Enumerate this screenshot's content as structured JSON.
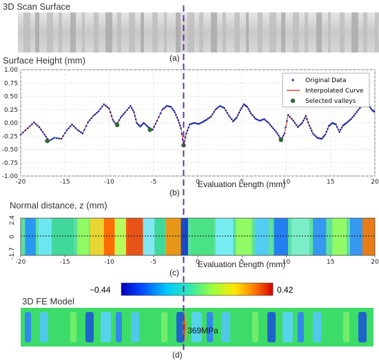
{
  "titles": {
    "scan": "3D Scan Surface",
    "surface_height": "Surface Height (mm)",
    "normal_distance": "Normal distance, z (mm)",
    "fe_model": "3D FE Model"
  },
  "panel_labels": [
    "(a)",
    "(b)",
    "(c)",
    "(d)"
  ],
  "annotation": "369MPa",
  "colors": {
    "curve": "#e04a3a",
    "points": "#1a2a9c",
    "valleys": "#2e6b2e",
    "cursor": "#6a2fa0",
    "grid": "#d9d9d9"
  },
  "chart_data": [
    {
      "type": "line",
      "xlabel": "Evaluation Length (mm)",
      "ylabel": "Surface Height (mm)",
      "xlim": [
        -20,
        20
      ],
      "ylim": [
        -1.0,
        1.0
      ],
      "xticks": [
        "-20",
        "-15",
        "-10",
        "-5",
        "0",
        "5",
        "10",
        "15",
        "20"
      ],
      "yticks": [
        "-1.00",
        "-0.75",
        "-0.50",
        "-0.25",
        "0.00",
        "0.25",
        "0.50",
        "0.75",
        "1.00"
      ],
      "grid": true,
      "legend_position": "top-right",
      "legend": [
        "Original Data",
        "Interpolated Curve",
        "Selected valleys"
      ],
      "cursor_x": -1.6,
      "series": [
        {
          "name": "Interpolated Curve",
          "x": [
            -20,
            -19.2,
            -18.5,
            -17.9,
            -17.3,
            -16.8,
            -16.2,
            -15.4,
            -14.8,
            -14.2,
            -13.6,
            -13,
            -12.4,
            -11.8,
            -11.2,
            -10.6,
            -10,
            -9.6,
            -9.2,
            -8.7,
            -8.2,
            -7.6,
            -7.2,
            -6.9,
            -6.5,
            -6.1,
            -5.6,
            -5.1,
            -4.6,
            -4,
            -3.5,
            -3,
            -2.6,
            -2.2,
            -1.9,
            -1.6,
            -1.3,
            -0.9,
            -0.4,
            0.1,
            0.6,
            1,
            1.5,
            2,
            2.5,
            3,
            3.5,
            4,
            4.4,
            4.8,
            5.2,
            5.6,
            6,
            6.5,
            7,
            7.5,
            8,
            8.5,
            9,
            9.4,
            9.8,
            10.2,
            10.8,
            11.3,
            11.8,
            12.2,
            12.6,
            13,
            13.5,
            14,
            14.4,
            14.8,
            15.2,
            15.6,
            16,
            16.4,
            16.8,
            17.3,
            17.8,
            18.3,
            18.8,
            19.3,
            19.7,
            20
          ],
          "y": [
            -0.22,
            -0.1,
            0.01,
            -0.08,
            -0.22,
            -0.34,
            -0.28,
            -0.3,
            -0.14,
            -0.03,
            -0.13,
            -0.2,
            0.01,
            0.13,
            0.22,
            0.35,
            0.27,
            0.06,
            -0.04,
            0.1,
            0.2,
            0.32,
            0.2,
            0.0,
            -0.07,
            0.0,
            -0.08,
            -0.13,
            0.04,
            0.25,
            0.32,
            0.3,
            0.2,
            0.05,
            -0.1,
            -0.42,
            -0.2,
            -0.03,
            0.0,
            -0.02,
            0.02,
            0.06,
            0.12,
            0.25,
            0.32,
            0.28,
            0.14,
            0.03,
            0.1,
            0.24,
            0.35,
            0.3,
            0.18,
            0.08,
            0.04,
            0.07,
            0.0,
            -0.1,
            -0.2,
            -0.32,
            -0.2,
            0.15,
            0.04,
            -0.08,
            0.0,
            0.13,
            -0.05,
            -0.2,
            -0.28,
            -0.3,
            -0.22,
            -0.06,
            0.0,
            -0.03,
            -0.17,
            -0.05,
            0.0,
            0.07,
            0.17,
            0.28,
            0.35,
            0.33,
            0.24,
            0.2
          ]
        },
        {
          "name": "Selected valleys",
          "x": [
            -17.0,
            -9.1,
            -5.4,
            -1.6,
            9.4
          ],
          "y": [
            -0.34,
            -0.04,
            -0.13,
            -0.42,
            -0.32
          ]
        }
      ]
    },
    {
      "type": "heatmap",
      "xlabel": "Evaluation Length (mm)",
      "ylabel": "Normal distance, z (mm)",
      "xlim": [
        -20,
        20
      ],
      "ylim": [
        -1.7,
        2.4
      ],
      "xticks": [
        "-20",
        "-15",
        "-10",
        "-5",
        "0",
        "5",
        "10",
        "15",
        "20"
      ],
      "yticks": [
        "2.4",
        "0",
        "-1.7"
      ],
      "colorbar": {
        "min": "−0.44",
        "max": "0.42"
      }
    }
  ]
}
